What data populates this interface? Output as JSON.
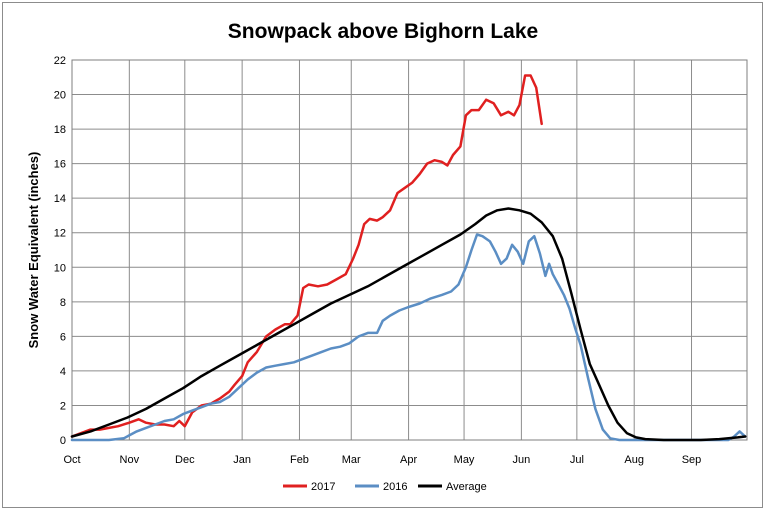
{
  "chart_data": {
    "type": "line",
    "title": "Snowpack above Bighorn Lake",
    "ylabel": "Snow Water Equivalent  (inches)",
    "xlabel": "",
    "ylim": [
      0,
      22
    ],
    "yticks": [
      0,
      2,
      4,
      6,
      8,
      10,
      12,
      14,
      16,
      18,
      20,
      22
    ],
    "x_months": [
      "Oct",
      "Nov",
      "Dec",
      "Jan",
      "Feb",
      "Mar",
      "Apr",
      "May",
      "Jun",
      "Jul",
      "Aug",
      "Sep"
    ],
    "x_unit": "day of water year (Oct 1 = 0)",
    "grid": true,
    "legend_position": "bottom",
    "series": [
      {
        "name": "2017",
        "color": "#e02020",
        "points": [
          [
            0,
            0.2
          ],
          [
            5,
            0.4
          ],
          [
            10,
            0.6
          ],
          [
            15,
            0.6
          ],
          [
            20,
            0.7
          ],
          [
            25,
            0.8
          ],
          [
            31,
            1.0
          ],
          [
            36,
            1.2
          ],
          [
            40,
            1.0
          ],
          [
            45,
            0.9
          ],
          [
            50,
            0.9
          ],
          [
            55,
            0.8
          ],
          [
            58,
            1.1
          ],
          [
            61,
            0.8
          ],
          [
            65,
            1.6
          ],
          [
            70,
            2.0
          ],
          [
            75,
            2.1
          ],
          [
            80,
            2.4
          ],
          [
            85,
            2.8
          ],
          [
            88,
            3.2
          ],
          [
            92,
            3.7
          ],
          [
            95,
            4.5
          ],
          [
            100,
            5.1
          ],
          [
            105,
            6.0
          ],
          [
            110,
            6.4
          ],
          [
            115,
            6.7
          ],
          [
            118,
            6.7
          ],
          [
            122,
            7.2
          ],
          [
            125,
            8.8
          ],
          [
            128,
            9.0
          ],
          [
            133,
            8.9
          ],
          [
            138,
            9.0
          ],
          [
            143,
            9.3
          ],
          [
            148,
            9.6
          ],
          [
            152,
            10.5
          ],
          [
            155,
            11.3
          ],
          [
            158,
            12.5
          ],
          [
            161,
            12.8
          ],
          [
            165,
            12.7
          ],
          [
            168,
            12.9
          ],
          [
            172,
            13.3
          ],
          [
            176,
            14.3
          ],
          [
            180,
            14.6
          ],
          [
            184,
            14.9
          ],
          [
            188,
            15.4
          ],
          [
            192,
            16.0
          ],
          [
            196,
            16.2
          ],
          [
            200,
            16.1
          ],
          [
            203,
            15.9
          ],
          [
            206,
            16.5
          ],
          [
            210,
            17.0
          ],
          [
            213,
            18.8
          ],
          [
            216,
            19.1
          ],
          [
            220,
            19.1
          ],
          [
            224,
            19.7
          ],
          [
            228,
            19.5
          ],
          [
            232,
            18.8
          ],
          [
            236,
            19.0
          ],
          [
            239,
            18.8
          ],
          [
            242,
            19.4
          ],
          [
            245,
            21.1
          ],
          [
            248,
            21.1
          ],
          [
            251,
            20.4
          ],
          [
            254,
            18.3
          ]
        ]
      },
      {
        "name": "2016",
        "color": "#5b8ec4",
        "points": [
          [
            0,
            0.0
          ],
          [
            10,
            0.0
          ],
          [
            20,
            0.0
          ],
          [
            28,
            0.1
          ],
          [
            35,
            0.5
          ],
          [
            40,
            0.7
          ],
          [
            45,
            0.9
          ],
          [
            50,
            1.1
          ],
          [
            55,
            1.2
          ],
          [
            60,
            1.5
          ],
          [
            65,
            1.7
          ],
          [
            70,
            1.9
          ],
          [
            75,
            2.1
          ],
          [
            80,
            2.2
          ],
          [
            85,
            2.5
          ],
          [
            90,
            3.0
          ],
          [
            95,
            3.5
          ],
          [
            100,
            3.9
          ],
          [
            105,
            4.2
          ],
          [
            110,
            4.3
          ],
          [
            115,
            4.4
          ],
          [
            120,
            4.5
          ],
          [
            125,
            4.7
          ],
          [
            130,
            4.9
          ],
          [
            135,
            5.1
          ],
          [
            140,
            5.3
          ],
          [
            145,
            5.4
          ],
          [
            150,
            5.6
          ],
          [
            155,
            6.0
          ],
          [
            160,
            6.2
          ],
          [
            165,
            6.2
          ],
          [
            168,
            6.9
          ],
          [
            172,
            7.2
          ],
          [
            177,
            7.5
          ],
          [
            182,
            7.7
          ],
          [
            188,
            7.9
          ],
          [
            194,
            8.2
          ],
          [
            200,
            8.4
          ],
          [
            205,
            8.6
          ],
          [
            209,
            9.0
          ],
          [
            213,
            10.0
          ],
          [
            216,
            11.0
          ],
          [
            219,
            11.9
          ],
          [
            222,
            11.8
          ],
          [
            226,
            11.5
          ],
          [
            229,
            10.9
          ],
          [
            232,
            10.2
          ],
          [
            235,
            10.5
          ],
          [
            238,
            11.3
          ],
          [
            241,
            10.9
          ],
          [
            244,
            10.2
          ],
          [
            247,
            11.5
          ],
          [
            250,
            11.8
          ],
          [
            253,
            10.8
          ],
          [
            256,
            9.5
          ],
          [
            258,
            10.2
          ],
          [
            260,
            9.6
          ],
          [
            263,
            9.0
          ],
          [
            266,
            8.4
          ],
          [
            269,
            7.6
          ],
          [
            272,
            6.5
          ],
          [
            275,
            5.5
          ],
          [
            279,
            3.6
          ],
          [
            283,
            1.8
          ],
          [
            287,
            0.6
          ],
          [
            291,
            0.1
          ],
          [
            296,
            0.0
          ],
          [
            320,
            0.0
          ],
          [
            340,
            0.0
          ],
          [
            355,
            0.0
          ],
          [
            358,
            0.2
          ],
          [
            361,
            0.5
          ],
          [
            364,
            0.2
          ]
        ]
      },
      {
        "name": "Average",
        "color": "#000000",
        "points": [
          [
            0,
            0.2
          ],
          [
            10,
            0.5
          ],
          [
            20,
            0.9
          ],
          [
            30,
            1.3
          ],
          [
            40,
            1.8
          ],
          [
            50,
            2.4
          ],
          [
            60,
            3.0
          ],
          [
            70,
            3.7
          ],
          [
            80,
            4.3
          ],
          [
            90,
            4.9
          ],
          [
            100,
            5.5
          ],
          [
            110,
            6.1
          ],
          [
            120,
            6.7
          ],
          [
            130,
            7.3
          ],
          [
            140,
            7.9
          ],
          [
            150,
            8.4
          ],
          [
            160,
            8.9
          ],
          [
            170,
            9.5
          ],
          [
            180,
            10.1
          ],
          [
            190,
            10.7
          ],
          [
            200,
            11.3
          ],
          [
            210,
            11.9
          ],
          [
            218,
            12.5
          ],
          [
            224,
            13.0
          ],
          [
            230,
            13.3
          ],
          [
            236,
            13.4
          ],
          [
            242,
            13.3
          ],
          [
            248,
            13.1
          ],
          [
            254,
            12.6
          ],
          [
            260,
            11.8
          ],
          [
            265,
            10.5
          ],
          [
            270,
            8.5
          ],
          [
            275,
            6.4
          ],
          [
            280,
            4.4
          ],
          [
            285,
            3.2
          ],
          [
            290,
            2.0
          ],
          [
            295,
            1.0
          ],
          [
            300,
            0.4
          ],
          [
            305,
            0.15
          ],
          [
            310,
            0.05
          ],
          [
            320,
            0.0
          ],
          [
            340,
            0.0
          ],
          [
            350,
            0.05
          ],
          [
            360,
            0.15
          ],
          [
            364,
            0.2
          ]
        ]
      }
    ]
  }
}
